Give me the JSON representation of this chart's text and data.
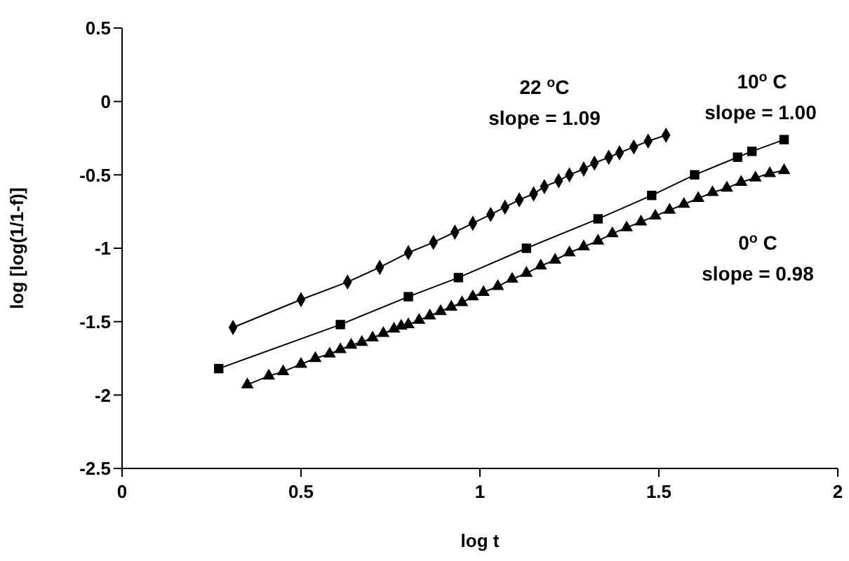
{
  "chart_data": {
    "type": "line",
    "xlabel": "log t",
    "ylabel": "log [log(1/1-f)]",
    "xlim": [
      0,
      2
    ],
    "xticks": [
      0,
      0.5,
      1,
      1.5,
      2
    ],
    "ylim": [
      -2.5,
      0.5
    ],
    "yticks": [
      -2.5,
      -2,
      -1.5,
      -1,
      -0.5,
      0,
      0.5
    ],
    "grid": false,
    "line_style": "solid",
    "series": [
      {
        "color": "#000000",
        "marker": "diamond",
        "x": [
          0.31,
          0.5,
          0.63,
          0.72,
          0.8,
          0.87,
          0.93,
          0.98,
          1.03,
          1.07,
          1.11,
          1.15,
          1.18,
          1.22,
          1.25,
          1.29,
          1.32,
          1.36,
          1.39,
          1.43,
          1.47,
          1.52
        ],
        "values": [
          -1.54,
          -1.35,
          -1.23,
          -1.13,
          -1.03,
          -0.96,
          -0.89,
          -0.83,
          -0.77,
          -0.72,
          -0.67,
          -0.63,
          -0.58,
          -0.54,
          -0.5,
          -0.46,
          -0.42,
          -0.38,
          -0.35,
          -0.31,
          -0.27,
          -0.23
        ]
      },
      {
        "color": "#000000",
        "marker": "square",
        "x": [
          0.27,
          0.61,
          0.8,
          0.94,
          1.13,
          1.33,
          1.48,
          1.6,
          1.72,
          1.76,
          1.85
        ],
        "values": [
          -1.82,
          -1.52,
          -1.33,
          -1.2,
          -1,
          -0.8,
          -0.64,
          -0.5,
          -0.38,
          -0.34,
          -0.26
        ]
      },
      {
        "color": "#000000",
        "marker": "triangle",
        "x": [
          0.35,
          0.41,
          0.45,
          0.5,
          0.54,
          0.58,
          0.61,
          0.64,
          0.67,
          0.7,
          0.73,
          0.76,
          0.78,
          0.8,
          0.83,
          0.86,
          0.89,
          0.92,
          0.95,
          0.98,
          1.01,
          1.05,
          1.09,
          1.13,
          1.17,
          1.21,
          1.25,
          1.29,
          1.33,
          1.37,
          1.41,
          1.45,
          1.49,
          1.53,
          1.57,
          1.61,
          1.65,
          1.69,
          1.73,
          1.77,
          1.81,
          1.85
        ],
        "values": [
          -1.93,
          -1.87,
          -1.84,
          -1.79,
          -1.75,
          -1.72,
          -1.69,
          -1.66,
          -1.64,
          -1.61,
          -1.58,
          -1.55,
          -1.53,
          -1.52,
          -1.49,
          -1.46,
          -1.43,
          -1.4,
          -1.37,
          -1.33,
          -1.3,
          -1.26,
          -1.21,
          -1.17,
          -1.12,
          -1.08,
          -1.03,
          -0.99,
          -0.95,
          -0.9,
          -0.86,
          -0.82,
          -0.78,
          -0.74,
          -0.7,
          -0.66,
          -0.62,
          -0.59,
          -0.55,
          -0.52,
          -0.49,
          -0.47
        ]
      }
    ],
    "annotations": [
      "22 $^{o}$C",
      "slope = 1.09",
      "10$^{o}$ C",
      "slope = 1.00",
      "0$^{o}$ C",
      "slope = 0.98"
    ]
  }
}
